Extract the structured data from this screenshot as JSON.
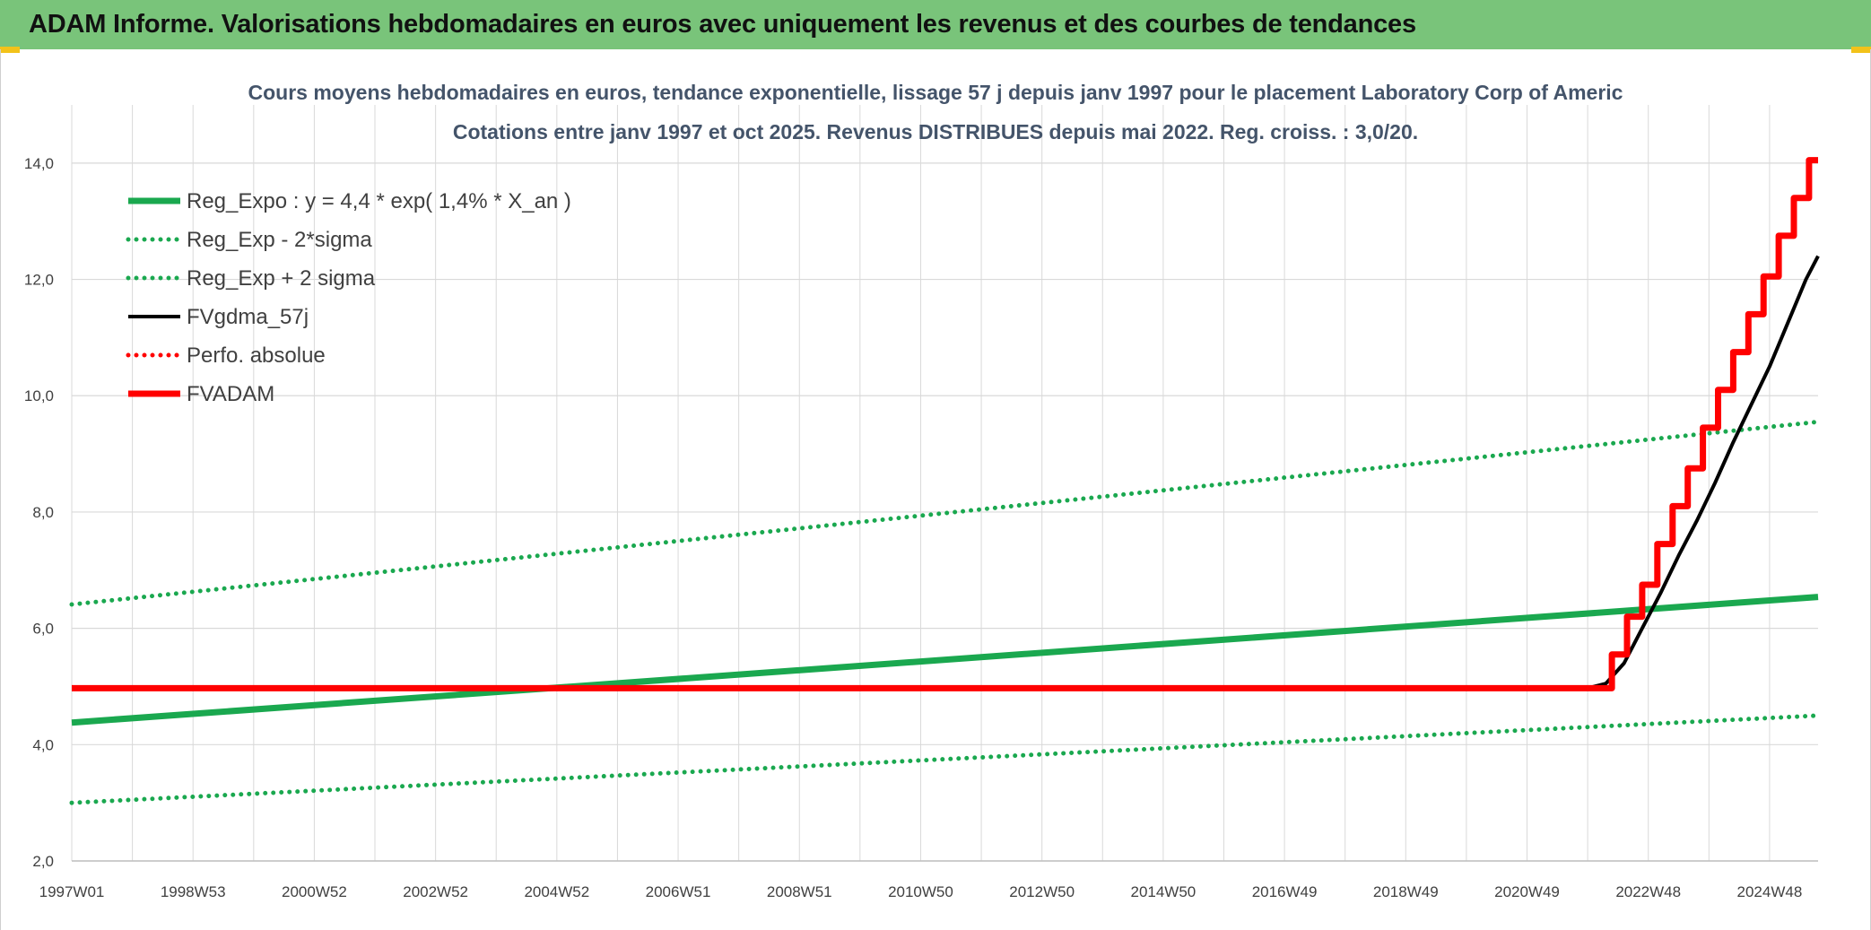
{
  "header": {
    "title": "ADAM Informe. Valorisations hebdomadaires en euros avec uniquement les revenus et des courbes de tendances"
  },
  "colors": {
    "banner": "#79c47a",
    "green": "#1aa84f",
    "red": "#ff0000",
    "black": "#000000",
    "grid": "#d9d9d9"
  },
  "chart_data": {
    "type": "line",
    "title": "Cours moyens hebdomadaires en euros, tendance exponentielle, lissage 57 j depuis janv 1997 pour le placement Laboratory Corp of Americ",
    "subtitle": "Cotations entre janv 1997 et oct 2025. Revenus DISTRIBUES depuis mai 2022. Reg. croiss. : 3,0/20.",
    "xlabel": "",
    "ylabel": "",
    "xlim": [
      1997.0,
      2025.8
    ],
    "ylim": [
      2.0,
      15.0
    ],
    "y_ticks": [
      "2,0",
      "4,0",
      "6,0",
      "8,0",
      "10,0",
      "12,0",
      "14,0"
    ],
    "x_ticks": [
      {
        "label": "1997W01",
        "x": 1997.0
      },
      {
        "label": "1998W53",
        "x": 1999.0
      },
      {
        "label": "2000W52",
        "x": 2001.0
      },
      {
        "label": "2002W52",
        "x": 2003.0
      },
      {
        "label": "2004W52",
        "x": 2005.0
      },
      {
        "label": "2006W51",
        "x": 2007.0
      },
      {
        "label": "2008W51",
        "x": 2009.0
      },
      {
        "label": "2010W50",
        "x": 2011.0
      },
      {
        "label": "2012W50",
        "x": 2013.0
      },
      {
        "label": "2014W50",
        "x": 2015.0
      },
      {
        "label": "2016W49",
        "x": 2017.0
      },
      {
        "label": "2018W49",
        "x": 2019.0
      },
      {
        "label": "2020W49",
        "x": 2021.0
      },
      {
        "label": "2022W48",
        "x": 2023.0
      },
      {
        "label": "2024W48",
        "x": 2025.0
      }
    ],
    "grid": true,
    "legend_position": "top-left",
    "series": [
      {
        "name": "Reg_Expo : y = 4,4 * exp( 1,4% *  X_an )",
        "color": "#1aa84f",
        "style": "solid",
        "points": [
          [
            1997.0,
            4.38
          ],
          [
            2025.8,
            6.54
          ]
        ]
      },
      {
        "name": "Reg_Exp - 2*sigma",
        "color": "#1aa84f",
        "style": "dotted",
        "points": [
          [
            1997.0,
            3.0
          ],
          [
            2025.8,
            4.5
          ]
        ]
      },
      {
        "name": "Reg_Exp + 2 sigma",
        "color": "#1aa84f",
        "style": "dotted",
        "points": [
          [
            1997.0,
            6.41
          ],
          [
            2025.8,
            9.55
          ]
        ]
      },
      {
        "name": "FVgdma_57j",
        "color": "#000000",
        "style": "solid",
        "points": [
          [
            1997.0,
            4.97
          ],
          [
            2022.0,
            4.97
          ],
          [
            2022.3,
            5.05
          ],
          [
            2022.6,
            5.4
          ],
          [
            2022.9,
            6.0
          ],
          [
            2023.2,
            6.6
          ],
          [
            2023.5,
            7.25
          ],
          [
            2023.8,
            7.85
          ],
          [
            2024.1,
            8.5
          ],
          [
            2024.4,
            9.2
          ],
          [
            2024.7,
            9.85
          ],
          [
            2025.0,
            10.5
          ],
          [
            2025.3,
            11.25
          ],
          [
            2025.6,
            12.0
          ],
          [
            2025.8,
            12.4
          ]
        ]
      },
      {
        "name": "Perfo. absolue",
        "color": "#ff0000",
        "style": "dotted",
        "points": []
      },
      {
        "name": "FVADAM",
        "color": "#ff0000",
        "style": "solid",
        "points": [
          [
            1997.0,
            4.97
          ],
          [
            2022.4,
            4.97
          ],
          [
            2022.4,
            5.55
          ],
          [
            2022.65,
            5.55
          ],
          [
            2022.65,
            6.2
          ],
          [
            2022.9,
            6.2
          ],
          [
            2022.9,
            6.75
          ],
          [
            2023.15,
            6.75
          ],
          [
            2023.15,
            7.45
          ],
          [
            2023.4,
            7.45
          ],
          [
            2023.4,
            8.1
          ],
          [
            2023.65,
            8.1
          ],
          [
            2023.65,
            8.75
          ],
          [
            2023.9,
            8.75
          ],
          [
            2023.9,
            9.45
          ],
          [
            2024.15,
            9.45
          ],
          [
            2024.15,
            10.1
          ],
          [
            2024.4,
            10.1
          ],
          [
            2024.4,
            10.75
          ],
          [
            2024.65,
            10.75
          ],
          [
            2024.65,
            11.4
          ],
          [
            2024.9,
            11.4
          ],
          [
            2024.9,
            12.05
          ],
          [
            2025.15,
            12.05
          ],
          [
            2025.15,
            12.75
          ],
          [
            2025.4,
            12.75
          ],
          [
            2025.4,
            13.4
          ],
          [
            2025.65,
            13.4
          ],
          [
            2025.65,
            14.05
          ],
          [
            2025.8,
            14.05
          ]
        ]
      }
    ]
  }
}
